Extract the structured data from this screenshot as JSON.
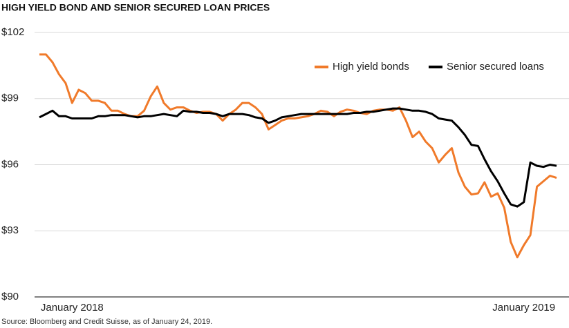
{
  "chart_data": {
    "type": "line",
    "title": "HIGH YIELD BOND AND SENIOR SECURED LOAN PRICES",
    "source": "Source: Bloomberg and Credit Suisse, as of January 24, 2019.",
    "categories": [
      null,
      null,
      null,
      null,
      null,
      "January 2018",
      null,
      null,
      null,
      null,
      null,
      null,
      null,
      null,
      null,
      null,
      null,
      null,
      null,
      null,
      null,
      null,
      null,
      null,
      null,
      null,
      null,
      null,
      null,
      null,
      null,
      null,
      null,
      null,
      null,
      null,
      null,
      null,
      null,
      null,
      null,
      null,
      null,
      null,
      null,
      null,
      null,
      null,
      null,
      null,
      null,
      null,
      null,
      null,
      null,
      null,
      null,
      null,
      null,
      null,
      null,
      null,
      null,
      null,
      null,
      null,
      null,
      null,
      null,
      null,
      null,
      null,
      null,
      null,
      "January 2019",
      null,
      null,
      null,
      null,
      null
    ],
    "series": [
      {
        "name": "High yield bonds",
        "color": "#f07a2a",
        "values": [
          101.0,
          101.0,
          100.65,
          100.1,
          99.7,
          98.8,
          99.4,
          99.25,
          98.9,
          98.9,
          98.8,
          98.45,
          98.45,
          98.3,
          98.2,
          98.2,
          98.45,
          99.1,
          99.55,
          98.8,
          98.5,
          98.6,
          98.6,
          98.45,
          98.35,
          98.4,
          98.4,
          98.3,
          98.0,
          98.3,
          98.5,
          98.8,
          98.8,
          98.6,
          98.3,
          97.6,
          97.8,
          98.0,
          98.1,
          98.1,
          98.15,
          98.2,
          98.3,
          98.45,
          98.4,
          98.2,
          98.4,
          98.5,
          98.45,
          98.35,
          98.3,
          98.45,
          98.5,
          98.5,
          98.45,
          98.6,
          98.0,
          97.25,
          97.5,
          97.05,
          96.75,
          96.1,
          96.45,
          96.75,
          95.65,
          95.0,
          94.65,
          94.7,
          95.2,
          94.55,
          94.7,
          94.05,
          92.5,
          91.8,
          92.35,
          92.8,
          95.0,
          95.25,
          95.5,
          95.4
        ]
      },
      {
        "name": "Senior secured loans",
        "color": "#000000",
        "values": [
          98.15,
          98.3,
          98.45,
          98.2,
          98.2,
          98.1,
          98.1,
          98.1,
          98.1,
          98.2,
          98.2,
          98.25,
          98.25,
          98.25,
          98.2,
          98.15,
          98.2,
          98.2,
          98.25,
          98.3,
          98.25,
          98.2,
          98.45,
          98.4,
          98.4,
          98.35,
          98.35,
          98.3,
          98.2,
          98.3,
          98.3,
          98.3,
          98.25,
          98.15,
          98.1,
          97.9,
          98.0,
          98.15,
          98.2,
          98.25,
          98.3,
          98.3,
          98.3,
          98.3,
          98.3,
          98.3,
          98.3,
          98.3,
          98.35,
          98.35,
          98.4,
          98.4,
          98.45,
          98.5,
          98.55,
          98.55,
          98.5,
          98.45,
          98.45,
          98.4,
          98.3,
          98.1,
          98.05,
          98.0,
          97.7,
          97.35,
          96.9,
          96.85,
          96.25,
          95.7,
          95.25,
          94.7,
          94.2,
          94.1,
          94.3,
          96.1,
          95.95,
          95.9,
          96.0,
          95.95
        ]
      }
    ],
    "ylim": [
      90,
      102
    ],
    "yticks": [
      {
        "value": 90,
        "label": "$90"
      },
      {
        "value": 93,
        "label": "$93"
      },
      {
        "value": 96,
        "label": "$96"
      },
      {
        "value": 99,
        "label": "$99"
      },
      {
        "value": 102,
        "label": "$102"
      }
    ],
    "grid": true,
    "legend": "upper right"
  }
}
